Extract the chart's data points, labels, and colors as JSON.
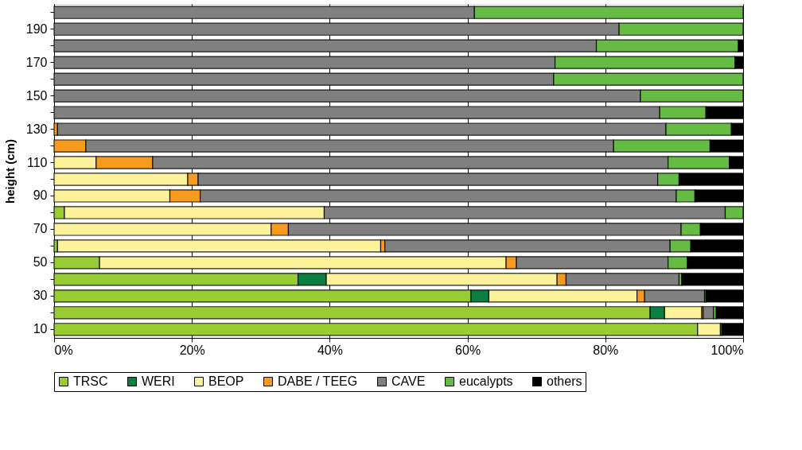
{
  "chart_data": {
    "type": "bar",
    "orientation": "horizontal",
    "stacked": true,
    "ylabel": "height (cm)",
    "categories": [
      null,
      "190",
      null,
      "170",
      null,
      "150",
      null,
      "130",
      null,
      "110",
      null,
      "90",
      null,
      "70",
      null,
      "50",
      null,
      "30",
      null,
      "10"
    ],
    "series": [
      {
        "name": "TRSC",
        "color": "#99cc33",
        "values": [
          null,
          null,
          null,
          null,
          null,
          null,
          null,
          null,
          null,
          null,
          null,
          null,
          1.5,
          null,
          0.5,
          6.6,
          35.4,
          60.5,
          86.5,
          93.4
        ]
      },
      {
        "name": "WERI",
        "color": "#0a7f3f",
        "values": [
          null,
          null,
          null,
          null,
          null,
          null,
          null,
          null,
          null,
          null,
          null,
          null,
          null,
          null,
          null,
          null,
          4.1,
          2.6,
          2.1,
          null
        ]
      },
      {
        "name": "BEOP",
        "color": "#fbf29a",
        "values": [
          null,
          null,
          null,
          null,
          null,
          null,
          null,
          null,
          null,
          6.1,
          19.4,
          16.8,
          37.7,
          31.5,
          46.9,
          59.0,
          33.5,
          21.5,
          5.4,
          3.3
        ]
      },
      {
        "name": "DABE / TEEG",
        "color": "#f79a1e",
        "values": [
          null,
          null,
          null,
          null,
          null,
          null,
          null,
          0.5,
          4.6,
          8.2,
          1.5,
          4.4,
          null,
          2.5,
          0.6,
          1.5,
          1.3,
          1.1,
          0.2,
          null
        ]
      },
      {
        "name": "CAVE",
        "color": "#808080",
        "values": [
          61,
          82,
          78.7,
          72.7,
          72.5,
          85.1,
          87.9,
          88.3,
          76.6,
          74.8,
          66.7,
          69.1,
          58.2,
          57.0,
          41.4,
          22.0,
          16.4,
          8.7,
          1.5,
          null
        ]
      },
      {
        "name": "eucalypts",
        "color": "#66bb44",
        "values": [
          39,
          18,
          20.6,
          26.1,
          27.5,
          14.9,
          6.7,
          9.5,
          14.0,
          8.9,
          3.1,
          2.7,
          2.6,
          2.8,
          3.0,
          2.8,
          0.4,
          0.2,
          0.4,
          0.2
        ]
      },
      {
        "name": "others",
        "color": "#000000",
        "values": [
          null,
          null,
          0.7,
          1.2,
          null,
          null,
          5.4,
          1.7,
          4.8,
          2.0,
          9.3,
          7.0,
          null,
          6.2,
          7.6,
          8.1,
          8.9,
          5.4,
          3.9,
          3.1
        ]
      }
    ],
    "xlim": [
      0,
      100
    ],
    "xticks": [
      {
        "value": 0,
        "label": "0%"
      },
      {
        "value": 20,
        "label": "20%"
      },
      {
        "value": 40,
        "label": "40%"
      },
      {
        "value": 60,
        "label": "60%"
      },
      {
        "value": 80,
        "label": "80%"
      },
      {
        "value": 100,
        "label": "100%"
      }
    ],
    "grid": "x",
    "legend": "bottom"
  }
}
